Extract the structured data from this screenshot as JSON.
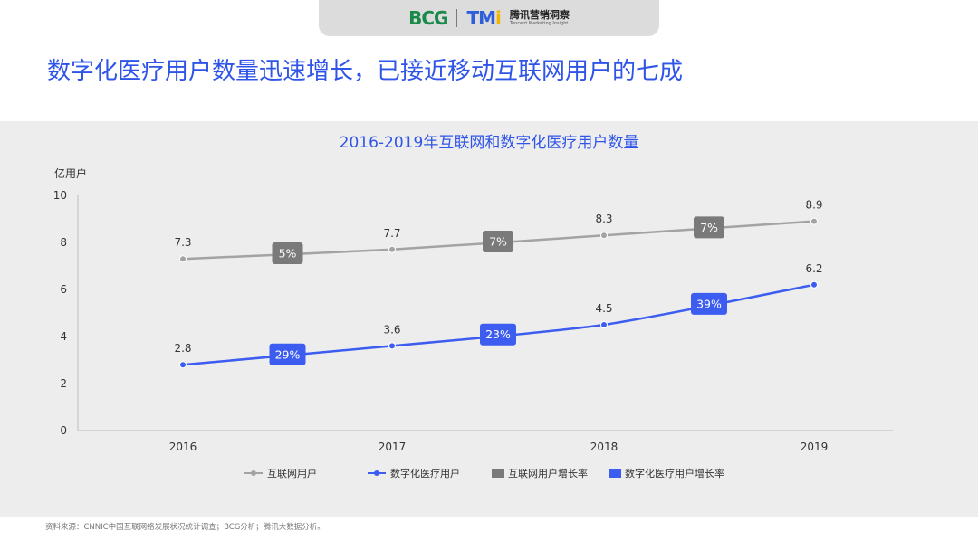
{
  "header": {
    "logo_bcg": "BCG",
    "logo_tmi_main": "TM",
    "logo_tmi_i": "i",
    "logo_tmi_cn": "腾讯营销洞察",
    "logo_tmi_en": "Tencent Marketing Insight"
  },
  "page_title": "数字化医疗用户数量迅速增长，已接近移动互联网用户的七成",
  "source_note": "资料来源：CNNIC中国互联网络发展状况统计调查；BCG分析；腾讯大数据分析。",
  "colors": {
    "internet_line": "#a3a3a3",
    "internet_badge": "#7a7a7a",
    "digital_line": "#3d5cf0",
    "digital_badge": "#3d5cf0",
    "title": "#2f55e8"
  },
  "chart_data": {
    "type": "line",
    "title": "2016-2019年互联网和数字化医疗用户数量",
    "ylabel": "亿用户",
    "xlabel": "",
    "ylim": [
      0,
      10
    ],
    "yticks": [
      0,
      2,
      4,
      6,
      8,
      10
    ],
    "categories": [
      "2016",
      "2017",
      "2018",
      "2019"
    ],
    "grid": false,
    "legend_position": "bottom",
    "series": [
      {
        "name": "互联网用户",
        "values": [
          7.3,
          7.7,
          8.3,
          8.9
        ],
        "labels": [
          "7.3",
          "7.7",
          "8.3",
          "8.9"
        ],
        "color": "#a3a3a3"
      },
      {
        "name": "数字化医疗用户",
        "values": [
          2.8,
          3.6,
          4.5,
          6.2
        ],
        "labels": [
          "2.8",
          "3.6",
          "4.5",
          "6.2"
        ],
        "color": "#3d5cf0"
      }
    ],
    "growth_series": [
      {
        "name": "互联网用户增长率",
        "labels": [
          "5%",
          "7%",
          "7%"
        ],
        "color": "#7a7a7a"
      },
      {
        "name": "数字化医疗用户增长率",
        "labels": [
          "29%",
          "23%",
          "39%"
        ],
        "color": "#3d5cf0"
      }
    ]
  }
}
